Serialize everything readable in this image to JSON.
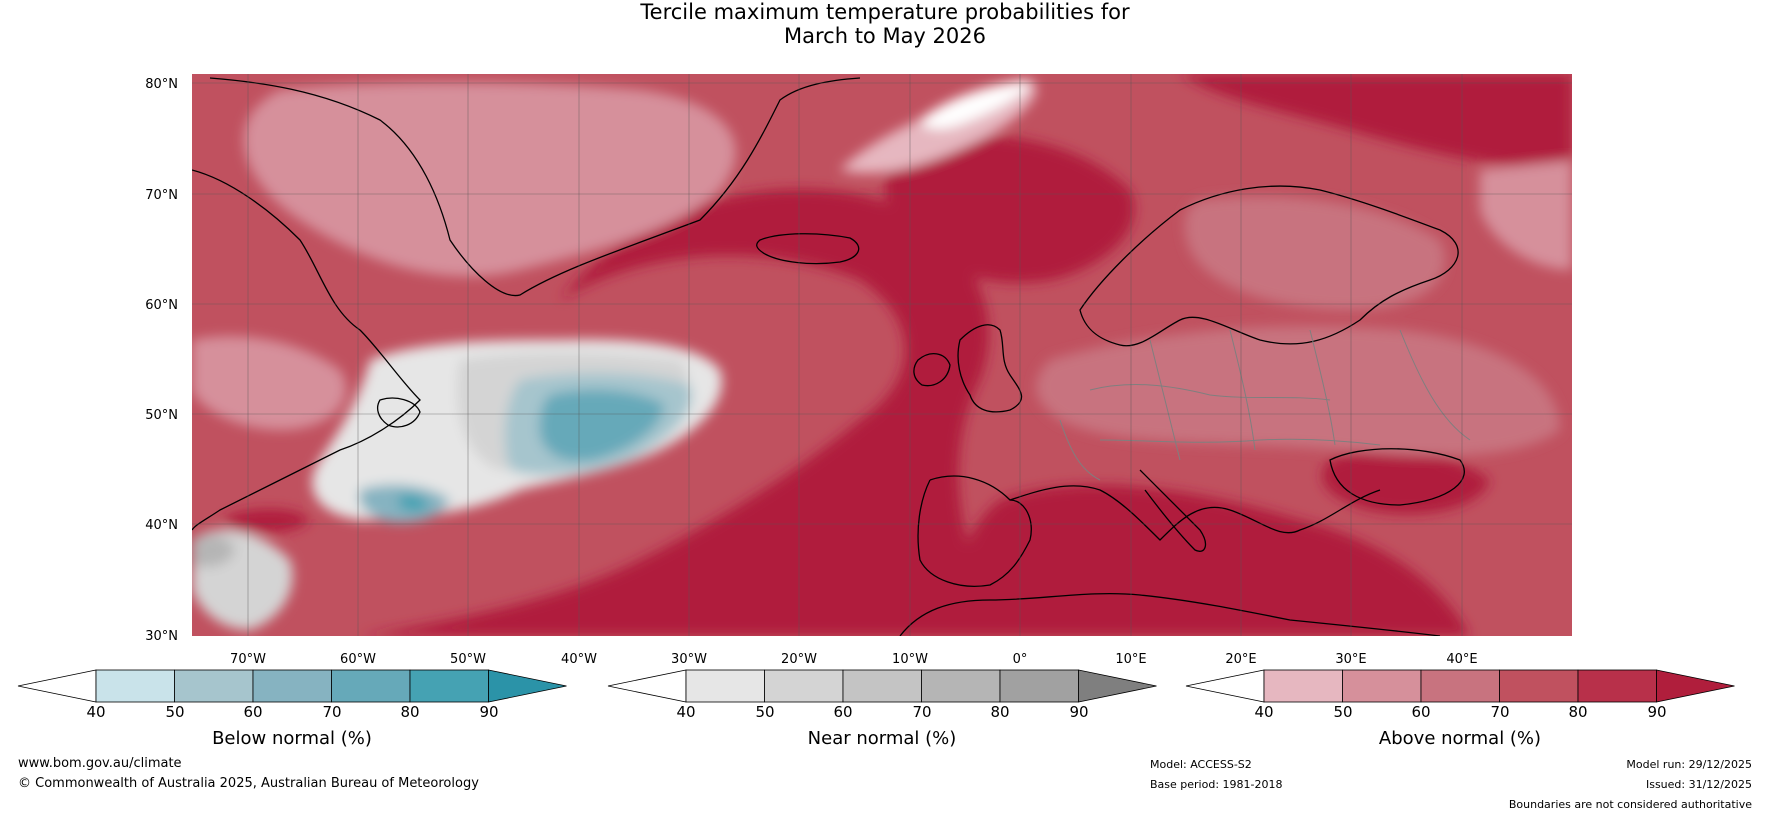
{
  "title": {
    "line1": "Tercile maximum temperature probabilities for",
    "line2": "March to May 2026"
  },
  "map": {
    "lat_labels": [
      "80°N",
      "70°N",
      "60°N",
      "50°N",
      "40°N",
      "30°N"
    ],
    "lon_labels": [
      "70°W",
      "60°W",
      "50°W",
      "40°W",
      "30°W",
      "20°W",
      "10°W",
      "0°",
      "10°E",
      "20°E",
      "30°E",
      "40°E"
    ]
  },
  "colorbars": [
    {
      "title": "Below normal (%)",
      "ticks": [
        "40",
        "50",
        "60",
        "70",
        "80",
        "90"
      ],
      "colors": [
        "#ffffff",
        "#c9e3ea",
        "#a6c5cd",
        "#86b3c1",
        "#66a9b9",
        "#45a2b3",
        "#2b93a8"
      ]
    },
    {
      "title": "Near normal (%)",
      "ticks": [
        "40",
        "50",
        "60",
        "70",
        "80",
        "90"
      ],
      "colors": [
        "#ffffff",
        "#e6e6e6",
        "#d4d4d4",
        "#c4c4c4",
        "#b5b5b5",
        "#a1a1a1",
        "#7f7f7f"
      ]
    },
    {
      "title": "Above normal (%)",
      "ticks": [
        "40",
        "50",
        "60",
        "70",
        "80",
        "90"
      ],
      "colors": [
        "#ffffff",
        "#e6b7c0",
        "#d6909b",
        "#c8737f",
        "#c0515f",
        "#b8304a",
        "#b01e3c"
      ]
    }
  ],
  "colors": {
    "above_light": "#d6909b",
    "above_mid": "#c8737f",
    "above_strong": "#c0515f",
    "above_dark": "#b01e3c",
    "below_mid": "#66a9b9",
    "near_mid": "#c4c4c4"
  },
  "footer": {
    "website": "www.bom.gov.au/climate",
    "copyright": "© Commonwealth of Australia 2025, Australian Bureau of Meteorology",
    "model": "Model: ACCESS-S2",
    "base_period": "Base period: 1981-2018",
    "model_run": "Model run: 29/12/2025",
    "issued": "Issued: 31/12/2025",
    "disclaimer": "Boundaries are not considered authoritative"
  }
}
